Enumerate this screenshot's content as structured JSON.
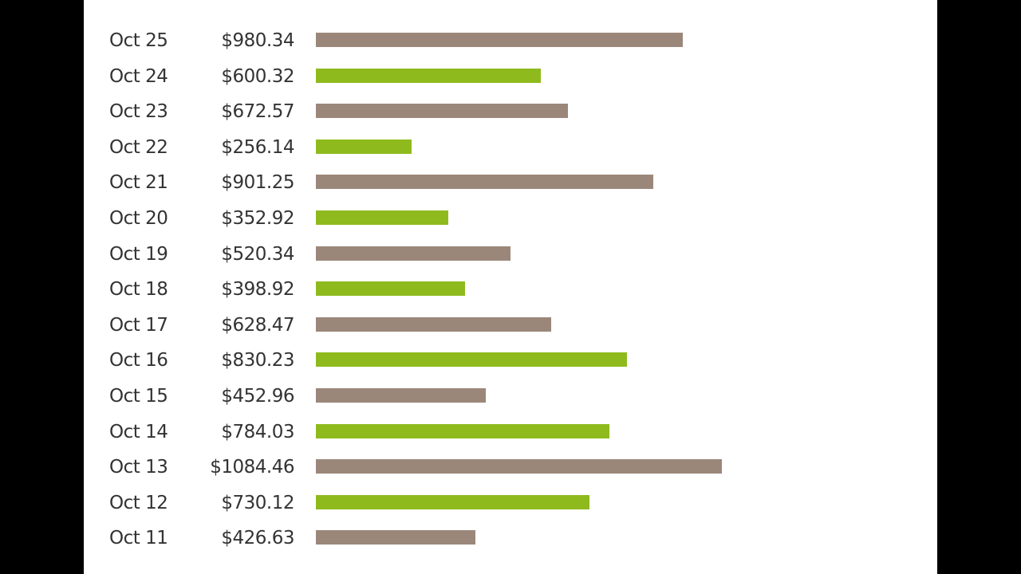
{
  "chart_data": {
    "type": "bar",
    "orientation": "horizontal",
    "categories": [
      "Oct 25",
      "Oct 24",
      "Oct 23",
      "Oct 22",
      "Oct 21",
      "Oct 20",
      "Oct 19",
      "Oct 18",
      "Oct 17",
      "Oct 16",
      "Oct 15",
      "Oct 14",
      "Oct 13",
      "Oct 12",
      "Oct 11"
    ],
    "values": [
      980.34,
      600.32,
      672.57,
      256.14,
      901.25,
      352.92,
      520.34,
      398.92,
      628.47,
      830.23,
      452.96,
      784.03,
      1084.46,
      730.12,
      426.63
    ],
    "labels": [
      "$980.34",
      "$600.32",
      "$672.57",
      "$256.14",
      "$901.25",
      "$352.92",
      "$520.34",
      "$398.92",
      "$628.47",
      "$830.23",
      "$452.96",
      "$784.03",
      "$1084.46",
      "$730.12",
      "$426.63"
    ],
    "colors": [
      "#9b877a",
      "#8fba1e"
    ],
    "grid": false,
    "title": "",
    "xlabel": "",
    "ylabel": ""
  }
}
